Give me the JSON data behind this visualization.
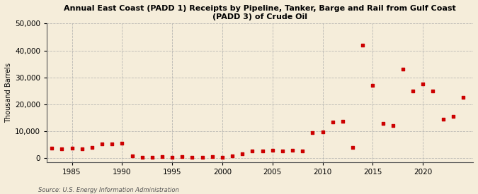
{
  "title": "Annual East Coast (PADD 1) Receipts by Pipeline, Tanker, Barge and Rail from Gulf Coast\n(PADD 3) of Crude Oil",
  "ylabel": "Thousand Barrels",
  "source": "Source: U.S. Energy Information Administration",
  "background_color": "#f5edda",
  "marker_color": "#cc0000",
  "xlim": [
    1982.5,
    2025
  ],
  "ylim": [
    -1500,
    50000
  ],
  "yticks": [
    0,
    10000,
    20000,
    30000,
    40000,
    50000
  ],
  "xticks": [
    1985,
    1990,
    1995,
    2000,
    2005,
    2010,
    2015,
    2020
  ],
  "years": [
    1983,
    1984,
    1985,
    1986,
    1987,
    1988,
    1989,
    1990,
    1991,
    1992,
    1993,
    1994,
    1995,
    1996,
    1997,
    1998,
    1999,
    2000,
    2001,
    2002,
    2003,
    2004,
    2005,
    2006,
    2007,
    2008,
    2009,
    2010,
    2011,
    2012,
    2013,
    2014,
    2015,
    2016,
    2017,
    2018,
    2019,
    2020,
    2021,
    2022,
    2023,
    2024
  ],
  "values": [
    3800,
    3300,
    3600,
    3400,
    4000,
    5300,
    5200,
    5400,
    700,
    400,
    300,
    500,
    350,
    600,
    350,
    250,
    550,
    350,
    900,
    1700,
    2700,
    2600,
    2800,
    2700,
    2900,
    2700,
    9500,
    9700,
    13500,
    13700,
    4000,
    42000,
    27000,
    13000,
    12000,
    33000,
    25000,
    27500,
    25000,
    14500,
    15500,
    22500
  ]
}
